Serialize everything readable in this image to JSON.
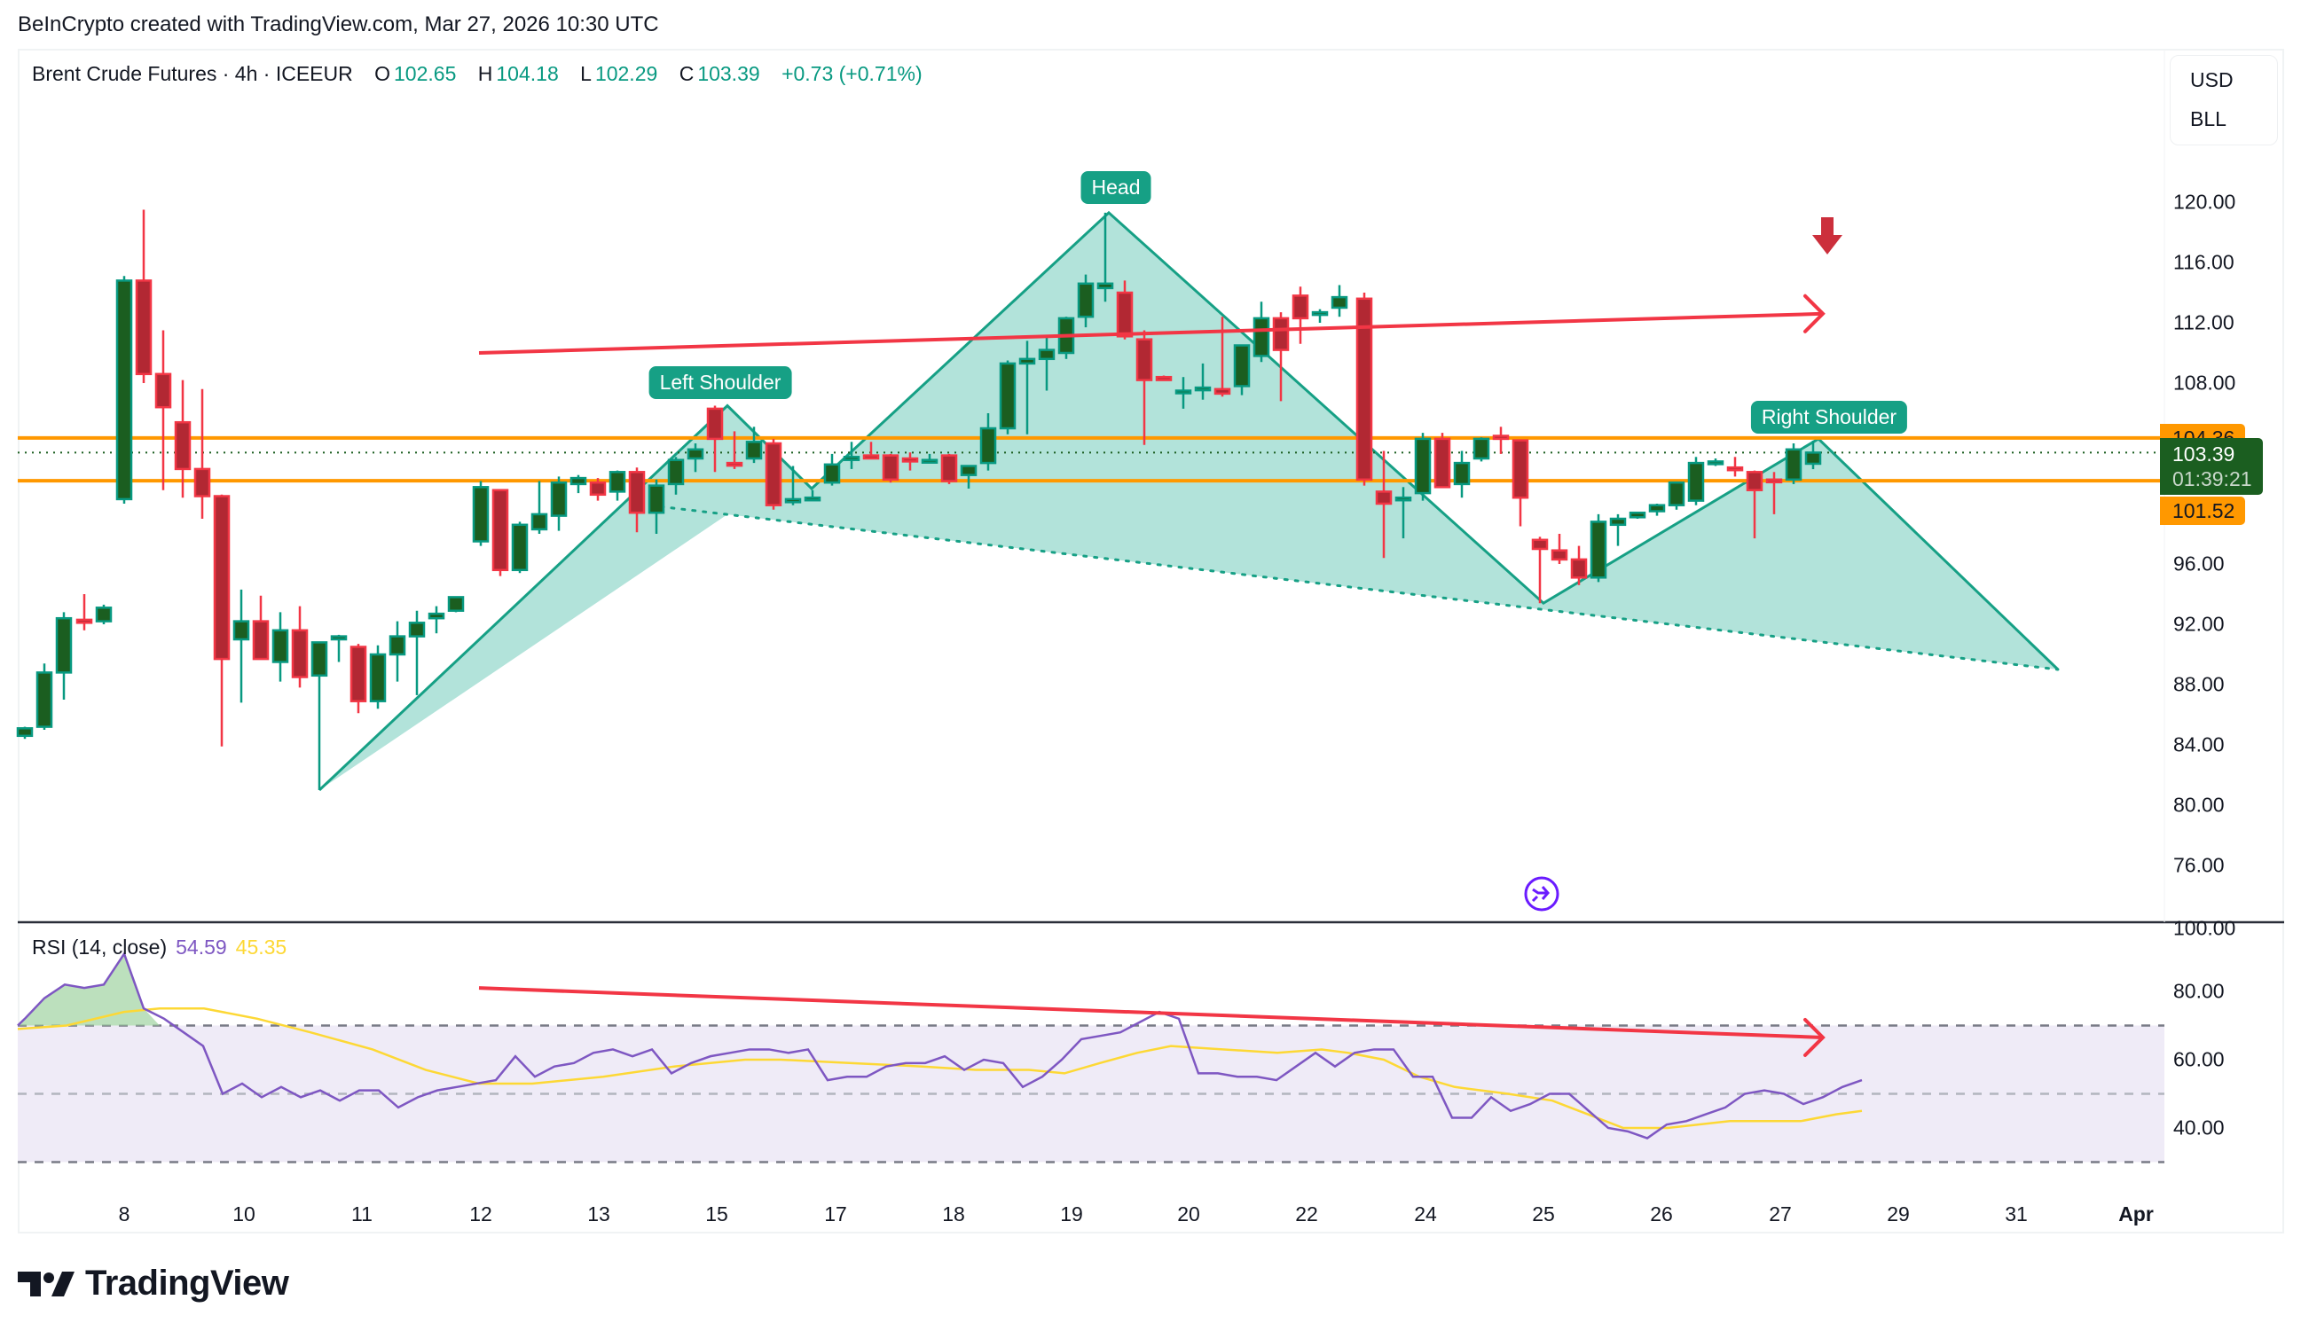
{
  "credit": "BeInCrypto created with TradingView.com, Mar 27, 2026 10:30 UTC",
  "legend": {
    "symbol": "Brent Crude Futures · 4h · ICEEUR",
    "open_label": "O",
    "open": "102.65",
    "high_label": "H",
    "high": "104.18",
    "low_label": "L",
    "low": "102.29",
    "close_label": "C",
    "close": "103.39",
    "change": "+0.73 (+0.71%)"
  },
  "currency": {
    "unit": "USD",
    "measure": "BLL"
  },
  "price_axis": {
    "ticks": [
      "120.00",
      "116.00",
      "112.00",
      "108.00",
      "96.00",
      "92.00",
      "88.00",
      "84.00",
      "80.00",
      "76.00"
    ],
    "tick_values": [
      120,
      116,
      112,
      108,
      96,
      92,
      88,
      84,
      80,
      76
    ]
  },
  "tags": {
    "resistance": "104.36",
    "current_price": "103.39",
    "countdown": "01:39:21",
    "support": "101.52"
  },
  "pattern_labels": {
    "left": "Left Shoulder",
    "head": "Head",
    "right": "Right Shoulder"
  },
  "rsi": {
    "title": "RSI (14, close)",
    "value": "54.59",
    "ma_value": "45.35",
    "ticks": [
      "100.00",
      "80.00",
      "60.00",
      "40.00"
    ],
    "tick_values": [
      100,
      80,
      60,
      40
    ]
  },
  "x_axis": {
    "labels": [
      "8",
      "10",
      "11",
      "12",
      "13",
      "15",
      "17",
      "18",
      "19",
      "20",
      "22",
      "24",
      "25",
      "26",
      "27",
      "29",
      "31",
      "Apr"
    ],
    "positions": [
      140,
      275,
      408,
      542,
      675,
      808,
      942,
      1075,
      1208,
      1340,
      1473,
      1607,
      1740,
      1873,
      2007,
      2140,
      2273,
      2408
    ]
  },
  "brand": "TradingView",
  "colors": {
    "up_border": "#089981",
    "up_body": "#1b5e20",
    "down_border": "#f23645",
    "down_body": "#b22833",
    "level": "#ff9800",
    "pattern_fill": "#b2e3da",
    "pattern_line": "#16a085",
    "trend": "#f23645",
    "rsi": "#7e57c2",
    "rsi_ma": "#fdd835",
    "rsi_band": "#efebf7"
  },
  "chart_data": {
    "type": "candlestick",
    "title": "Brent Crude Futures · 4h · ICEEUR",
    "xlabel": "",
    "ylabel": "USD",
    "ylim": [
      74,
      124
    ],
    "levels": {
      "resistance": 104.36,
      "support": 101.52,
      "last": 103.39
    },
    "pattern": "Head and Shoulders",
    "pattern_points": [
      {
        "x": 360,
        "p": 81.0
      },
      {
        "x": 820,
        "p": 106.5,
        "label": "Left Shoulder"
      },
      {
        "x": 915,
        "p": 101.0
      },
      {
        "x": 1250,
        "p": 119.3,
        "label": "Head"
      },
      {
        "x": 1740,
        "p": 93.4
      },
      {
        "x": 2050,
        "p": 104.3,
        "label": "Right Shoulder"
      },
      {
        "x": 2320,
        "p": 89.0
      }
    ],
    "neckline": [
      {
        "x": 745,
        "p": 99.8
      },
      {
        "x": 2320,
        "p": 89.0
      }
    ],
    "trendline_price": [
      {
        "x": 540,
        "p": 110.0
      },
      {
        "x": 2055,
        "p": 112.6
      }
    ],
    "candles": [
      {
        "x": 28,
        "o": 84.6,
        "h": 85.2,
        "l": 84.4,
        "c": 85.1
      },
      {
        "x": 50,
        "o": 85.2,
        "h": 89.4,
        "l": 85.0,
        "c": 88.8
      },
      {
        "x": 72,
        "o": 88.8,
        "h": 92.8,
        "l": 87.0,
        "c": 92.4
      },
      {
        "x": 95,
        "o": 92.3,
        "h": 94.0,
        "l": 91.6,
        "c": 92.1
      },
      {
        "x": 117,
        "o": 92.2,
        "h": 93.3,
        "l": 92.0,
        "c": 93.1
      },
      {
        "x": 140,
        "o": 100.3,
        "h": 115.1,
        "l": 100.0,
        "c": 114.8
      },
      {
        "x": 162,
        "o": 114.8,
        "h": 119.5,
        "l": 108.0,
        "c": 108.6
      },
      {
        "x": 184,
        "o": 108.6,
        "h": 111.5,
        "l": 100.9,
        "c": 106.4
      },
      {
        "x": 206,
        "o": 105.4,
        "h": 108.2,
        "l": 100.4,
        "c": 102.3
      },
      {
        "x": 228,
        "o": 102.3,
        "h": 107.6,
        "l": 99.0,
        "c": 100.5
      },
      {
        "x": 250,
        "o": 100.5,
        "h": 100.6,
        "l": 83.9,
        "c": 89.7
      },
      {
        "x": 272,
        "o": 91.0,
        "h": 94.3,
        "l": 86.8,
        "c": 92.2
      },
      {
        "x": 294,
        "o": 92.2,
        "h": 93.9,
        "l": 89.9,
        "c": 89.7
      },
      {
        "x": 316,
        "o": 89.5,
        "h": 92.8,
        "l": 88.2,
        "c": 91.6
      },
      {
        "x": 338,
        "o": 91.6,
        "h": 93.2,
        "l": 87.8,
        "c": 88.5
      },
      {
        "x": 360,
        "o": 88.6,
        "h": 90.8,
        "l": 81.0,
        "c": 90.8
      },
      {
        "x": 382,
        "o": 91.0,
        "h": 91.3,
        "l": 89.5,
        "c": 91.2
      },
      {
        "x": 404,
        "o": 90.5,
        "h": 90.7,
        "l": 86.1,
        "c": 86.9
      },
      {
        "x": 426,
        "o": 86.9,
        "h": 90.6,
        "l": 86.4,
        "c": 90.0
      },
      {
        "x": 448,
        "o": 90.0,
        "h": 92.2,
        "l": 88.2,
        "c": 91.2
      },
      {
        "x": 470,
        "o": 91.2,
        "h": 92.9,
        "l": 87.3,
        "c": 92.1
      },
      {
        "x": 492,
        "o": 92.4,
        "h": 93.2,
        "l": 91.4,
        "c": 92.7
      },
      {
        "x": 514,
        "o": 92.9,
        "h": 93.6,
        "l": 92.8,
        "c": 93.8
      },
      {
        "x": 542,
        "o": 97.5,
        "h": 101.5,
        "l": 97.2,
        "c": 101.1
      },
      {
        "x": 564,
        "o": 100.9,
        "h": 100.9,
        "l": 95.2,
        "c": 95.6
      },
      {
        "x": 586,
        "o": 95.6,
        "h": 98.8,
        "l": 95.4,
        "c": 98.6
      },
      {
        "x": 608,
        "o": 98.3,
        "h": 101.5,
        "l": 98.0,
        "c": 99.3
      },
      {
        "x": 630,
        "o": 99.2,
        "h": 101.8,
        "l": 98.2,
        "c": 101.4
      },
      {
        "x": 652,
        "o": 101.3,
        "h": 101.9,
        "l": 100.7,
        "c": 101.7
      },
      {
        "x": 674,
        "o": 101.4,
        "h": 101.7,
        "l": 100.2,
        "c": 100.6
      },
      {
        "x": 696,
        "o": 100.8,
        "h": 102.2,
        "l": 100.2,
        "c": 102.1
      },
      {
        "x": 718,
        "o": 102.1,
        "h": 102.4,
        "l": 98.1,
        "c": 99.4
      },
      {
        "x": 740,
        "o": 99.4,
        "h": 101.6,
        "l": 98.0,
        "c": 101.2
      },
      {
        "x": 762,
        "o": 101.3,
        "h": 103.1,
        "l": 100.6,
        "c": 102.9
      },
      {
        "x": 784,
        "o": 103.0,
        "h": 104.0,
        "l": 102.1,
        "c": 103.6
      },
      {
        "x": 806,
        "o": 106.3,
        "h": 106.5,
        "l": 102.1,
        "c": 104.3
      },
      {
        "x": 828,
        "o": 102.7,
        "h": 104.8,
        "l": 102.3,
        "c": 102.6
      },
      {
        "x": 850,
        "o": 103.0,
        "h": 105.1,
        "l": 102.7,
        "c": 104.1
      },
      {
        "x": 872,
        "o": 104.0,
        "h": 104.3,
        "l": 99.6,
        "c": 99.9
      },
      {
        "x": 894,
        "o": 100.1,
        "h": 102.5,
        "l": 99.9,
        "c": 100.3
      },
      {
        "x": 916,
        "o": 100.3,
        "h": 100.9,
        "l": 100.2,
        "c": 100.4
      },
      {
        "x": 938,
        "o": 101.4,
        "h": 103.3,
        "l": 101.2,
        "c": 102.6
      },
      {
        "x": 960,
        "o": 102.9,
        "h": 104.1,
        "l": 102.3,
        "c": 103.1
      },
      {
        "x": 982,
        "o": 103.2,
        "h": 104.1,
        "l": 103.0,
        "c": 103.0
      },
      {
        "x": 1004,
        "o": 103.2,
        "h": 103.3,
        "l": 101.4,
        "c": 101.6
      },
      {
        "x": 1026,
        "o": 103.0,
        "h": 103.4,
        "l": 102.2,
        "c": 102.8
      },
      {
        "x": 1048,
        "o": 102.9,
        "h": 103.3,
        "l": 102.8,
        "c": 102.9
      },
      {
        "x": 1070,
        "o": 103.2,
        "h": 103.3,
        "l": 101.3,
        "c": 101.5
      },
      {
        "x": 1092,
        "o": 101.9,
        "h": 102.5,
        "l": 101.0,
        "c": 102.5
      },
      {
        "x": 1114,
        "o": 102.7,
        "h": 106.0,
        "l": 102.2,
        "c": 105.0
      },
      {
        "x": 1136,
        "o": 105.0,
        "h": 109.5,
        "l": 104.6,
        "c": 109.3
      },
      {
        "x": 1158,
        "o": 109.3,
        "h": 110.8,
        "l": 104.6,
        "c": 109.6
      },
      {
        "x": 1180,
        "o": 109.6,
        "h": 111.0,
        "l": 107.5,
        "c": 110.2
      },
      {
        "x": 1202,
        "o": 110.0,
        "h": 112.4,
        "l": 109.6,
        "c": 112.3
      },
      {
        "x": 1224,
        "o": 112.4,
        "h": 115.2,
        "l": 111.7,
        "c": 114.6
      },
      {
        "x": 1246,
        "o": 114.3,
        "h": 119.3,
        "l": 113.4,
        "c": 114.6
      },
      {
        "x": 1268,
        "o": 114.0,
        "h": 114.8,
        "l": 110.9,
        "c": 111.1
      },
      {
        "x": 1290,
        "o": 110.9,
        "h": 111.5,
        "l": 103.9,
        "c": 108.2
      },
      {
        "x": 1312,
        "o": 108.4,
        "h": 108.5,
        "l": 108.2,
        "c": 108.2
      },
      {
        "x": 1334,
        "o": 107.5,
        "h": 108.4,
        "l": 106.3,
        "c": 107.5
      },
      {
        "x": 1356,
        "o": 107.6,
        "h": 109.3,
        "l": 106.9,
        "c": 107.7
      },
      {
        "x": 1378,
        "o": 107.6,
        "h": 112.4,
        "l": 107.1,
        "c": 107.3
      },
      {
        "x": 1400,
        "o": 107.8,
        "h": 108.7,
        "l": 107.2,
        "c": 110.5
      },
      {
        "x": 1422,
        "o": 109.8,
        "h": 113.4,
        "l": 109.4,
        "c": 112.3
      },
      {
        "x": 1444,
        "o": 112.3,
        "h": 112.7,
        "l": 106.8,
        "c": 110.2
      },
      {
        "x": 1466,
        "o": 113.8,
        "h": 114.4,
        "l": 110.6,
        "c": 112.3
      },
      {
        "x": 1488,
        "o": 112.7,
        "h": 112.9,
        "l": 112.0,
        "c": 112.7
      },
      {
        "x": 1510,
        "o": 113.0,
        "h": 114.5,
        "l": 112.4,
        "c": 113.7
      },
      {
        "x": 1538,
        "o": 113.6,
        "h": 114.0,
        "l": 101.2,
        "c": 101.6
      },
      {
        "x": 1560,
        "o": 100.8,
        "h": 103.5,
        "l": 96.4,
        "c": 100.0
      },
      {
        "x": 1582,
        "o": 100.4,
        "h": 101.1,
        "l": 97.7,
        "c": 100.4
      },
      {
        "x": 1604,
        "o": 100.7,
        "h": 104.7,
        "l": 100.2,
        "c": 104.3
      },
      {
        "x": 1626,
        "o": 104.3,
        "h": 104.7,
        "l": 101.1,
        "c": 101.1
      },
      {
        "x": 1648,
        "o": 101.3,
        "h": 103.5,
        "l": 100.4,
        "c": 102.7
      },
      {
        "x": 1670,
        "o": 103.0,
        "h": 104.4,
        "l": 102.8,
        "c": 104.3
      },
      {
        "x": 1692,
        "o": 104.5,
        "h": 105.1,
        "l": 103.3,
        "c": 104.3
      },
      {
        "x": 1714,
        "o": 104.2,
        "h": 104.2,
        "l": 98.5,
        "c": 100.4
      },
      {
        "x": 1736,
        "o": 97.6,
        "h": 97.8,
        "l": 93.4,
        "c": 97.0
      },
      {
        "x": 1758,
        "o": 96.9,
        "h": 98.0,
        "l": 96.0,
        "c": 96.3
      },
      {
        "x": 1780,
        "o": 96.3,
        "h": 97.2,
        "l": 94.6,
        "c": 95.1
      },
      {
        "x": 1802,
        "o": 95.1,
        "h": 99.3,
        "l": 94.8,
        "c": 98.8
      },
      {
        "x": 1824,
        "o": 98.6,
        "h": 99.3,
        "l": 97.2,
        "c": 99.0
      },
      {
        "x": 1846,
        "o": 99.1,
        "h": 99.3,
        "l": 99.0,
        "c": 99.4
      },
      {
        "x": 1868,
        "o": 99.5,
        "h": 100.0,
        "l": 99.2,
        "c": 99.9
      },
      {
        "x": 1890,
        "o": 99.9,
        "h": 101.0,
        "l": 99.6,
        "c": 101.4
      },
      {
        "x": 1912,
        "o": 100.2,
        "h": 103.1,
        "l": 99.9,
        "c": 102.7
      },
      {
        "x": 1934,
        "o": 102.7,
        "h": 103.0,
        "l": 102.5,
        "c": 102.8
      },
      {
        "x": 1956,
        "o": 102.4,
        "h": 103.1,
        "l": 101.8,
        "c": 102.3
      },
      {
        "x": 1978,
        "o": 102.1,
        "h": 102.2,
        "l": 97.7,
        "c": 100.9
      },
      {
        "x": 2000,
        "o": 101.6,
        "h": 102.1,
        "l": 99.3,
        "c": 101.5
      },
      {
        "x": 2022,
        "o": 101.6,
        "h": 104.0,
        "l": 101.3,
        "c": 103.6
      },
      {
        "x": 2044,
        "o": 102.65,
        "h": 104.18,
        "l": 102.29,
        "c": 103.39
      }
    ],
    "rsi_series": [
      [
        20,
        70
      ],
      [
        28,
        72
      ],
      [
        50,
        78
      ],
      [
        73,
        82
      ],
      [
        95,
        81
      ],
      [
        117,
        82
      ],
      [
        140,
        91
      ],
      [
        162,
        75
      ],
      [
        185,
        72
      ],
      [
        207,
        68
      ],
      [
        229,
        64
      ],
      [
        251,
        50
      ],
      [
        273,
        53
      ],
      [
        295,
        49
      ],
      [
        317,
        52
      ],
      [
        339,
        49
      ],
      [
        361,
        51
      ],
      [
        383,
        48
      ],
      [
        405,
        51
      ],
      [
        427,
        51
      ],
      [
        449,
        46
      ],
      [
        471,
        49
      ],
      [
        493,
        51
      ],
      [
        515,
        52
      ],
      [
        537,
        53
      ],
      [
        559,
        54
      ],
      [
        581,
        61
      ],
      [
        603,
        55
      ],
      [
        625,
        58
      ],
      [
        647,
        59
      ],
      [
        669,
        62
      ],
      [
        691,
        63
      ],
      [
        713,
        61
      ],
      [
        735,
        63
      ],
      [
        757,
        56
      ],
      [
        779,
        59
      ],
      [
        801,
        61
      ],
      [
        823,
        62
      ],
      [
        845,
        63
      ],
      [
        867,
        63
      ],
      [
        889,
        62
      ],
      [
        911,
        63
      ],
      [
        933,
        54
      ],
      [
        955,
        55
      ],
      [
        977,
        55
      ],
      [
        999,
        58
      ],
      [
        1021,
        59
      ],
      [
        1043,
        59
      ],
      [
        1065,
        61
      ],
      [
        1087,
        57
      ],
      [
        1109,
        60
      ],
      [
        1131,
        59
      ],
      [
        1153,
        52
      ],
      [
        1175,
        55
      ],
      [
        1197,
        60
      ],
      [
        1219,
        66
      ],
      [
        1241,
        67
      ],
      [
        1263,
        68
      ],
      [
        1285,
        71
      ],
      [
        1307,
        74
      ],
      [
        1329,
        72
      ],
      [
        1351,
        56
      ],
      [
        1373,
        56
      ],
      [
        1395,
        55
      ],
      [
        1417,
        55
      ],
      [
        1439,
        54
      ],
      [
        1461,
        58
      ],
      [
        1483,
        62
      ],
      [
        1505,
        58
      ],
      [
        1527,
        62
      ],
      [
        1549,
        63
      ],
      [
        1571,
        63
      ],
      [
        1593,
        55
      ],
      [
        1615,
        55
      ],
      [
        1637,
        43
      ],
      [
        1659,
        43
      ],
      [
        1681,
        49
      ],
      [
        1703,
        45
      ],
      [
        1725,
        47
      ],
      [
        1747,
        50
      ],
      [
        1769,
        50
      ],
      [
        1791,
        45
      ],
      [
        1813,
        40
      ],
      [
        1835,
        39
      ],
      [
        1857,
        37
      ],
      [
        1879,
        41
      ],
      [
        1901,
        42
      ],
      [
        1923,
        44
      ],
      [
        1945,
        46
      ],
      [
        1967,
        50
      ],
      [
        1989,
        51
      ],
      [
        2011,
        50
      ],
      [
        2033,
        47
      ],
      [
        2055,
        49
      ],
      [
        2077,
        52
      ],
      [
        2099,
        54
      ]
    ],
    "rsi_ma_series": [
      [
        20,
        69
      ],
      [
        75,
        70
      ],
      [
        140,
        74
      ],
      [
        180,
        75
      ],
      [
        230,
        75
      ],
      [
        290,
        72
      ],
      [
        350,
        68
      ],
      [
        420,
        63
      ],
      [
        480,
        57
      ],
      [
        540,
        53
      ],
      [
        600,
        53
      ],
      [
        680,
        55
      ],
      [
        760,
        58
      ],
      [
        840,
        60
      ],
      [
        880,
        60
      ],
      [
        960,
        59
      ],
      [
        1040,
        58
      ],
      [
        1100,
        57
      ],
      [
        1160,
        57
      ],
      [
        1200,
        56
      ],
      [
        1240,
        59
      ],
      [
        1282,
        62
      ],
      [
        1320,
        64
      ],
      [
        1380,
        63
      ],
      [
        1440,
        62
      ],
      [
        1490,
        63
      ],
      [
        1520,
        62
      ],
      [
        1560,
        60
      ],
      [
        1600,
        55
      ],
      [
        1640,
        52
      ],
      [
        1700,
        50
      ],
      [
        1750,
        48
      ],
      [
        1790,
        44
      ],
      [
        1830,
        40
      ],
      [
        1880,
        40
      ],
      [
        1950,
        42
      ],
      [
        2030,
        42
      ],
      [
        2070,
        44
      ],
      [
        2099,
        45
      ]
    ],
    "rsi_trendline": [
      {
        "x": 540,
        "v": 81
      },
      {
        "x": 2055,
        "v": 66.5
      }
    ],
    "rsi_bands": {
      "upper": 70,
      "middle": 50,
      "lower": 30
    }
  }
}
